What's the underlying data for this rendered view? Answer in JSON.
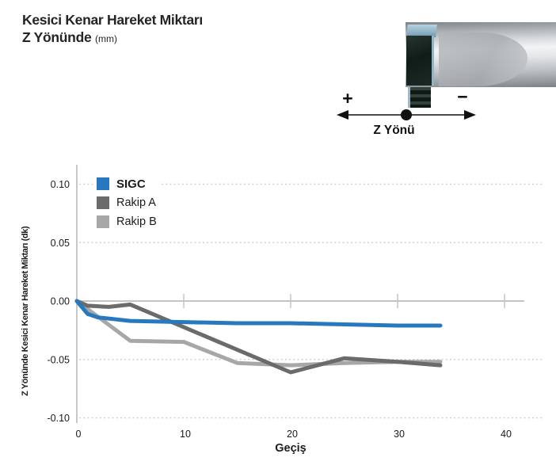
{
  "header": {
    "title_line1": "Kesici Kenar Hareket Miktarı",
    "title_line2": "Z Yönünde",
    "title_unit": "(mm)"
  },
  "direction_diagram": {
    "plus": "+",
    "minus": "−",
    "label": "Z Yönü"
  },
  "chart_data": {
    "type": "line",
    "title": "Kesici Kenar Hareket Miktarı Z Yönünde (mm)",
    "xlabel": "Geçiş",
    "ylabel": "Z Yönünde Kesici Kenar Hareket Miktarı (dk)",
    "xlim": [
      0,
      42
    ],
    "ylim": [
      -0.1,
      0.1
    ],
    "xticks": [
      0,
      10,
      20,
      30,
      40
    ],
    "yticks": [
      0.1,
      0.05,
      0.0,
      -0.05,
      -0.1
    ],
    "grid": "dotted horizontal gridlines at ±0.05 and ±0.10, solid line at 0.00",
    "legend_position": "top-left inside plot",
    "series": [
      {
        "name": "SIGC",
        "color": "#2878bf",
        "x": [
          0,
          1,
          2,
          5,
          10,
          15,
          20,
          25,
          30,
          34
        ],
        "y": [
          0,
          -0.011,
          -0.014,
          -0.017,
          -0.018,
          -0.019,
          -0.019,
          -0.02,
          -0.021,
          -0.021
        ]
      },
      {
        "name": "Rakip A",
        "color": "#6b6b6b",
        "x": [
          0,
          1,
          3,
          5,
          20,
          25,
          30,
          34
        ],
        "y": [
          0,
          -0.004,
          -0.005,
          -0.003,
          -0.061,
          -0.049,
          -0.052,
          -0.055
        ]
      },
      {
        "name": "Rakip B",
        "color": "#a7a7a7",
        "x": [
          0,
          5,
          10,
          15,
          20,
          25,
          30,
          34
        ],
        "y": [
          0,
          -0.034,
          -0.035,
          -0.053,
          -0.055,
          -0.053,
          -0.052,
          -0.052
        ]
      }
    ],
    "axis_colors": {
      "axis_line": "#b5b5b5",
      "zero_line": "#c4c4c4",
      "grid_dots": "#cccccc",
      "tick_text": "#1a1a1a"
    }
  }
}
